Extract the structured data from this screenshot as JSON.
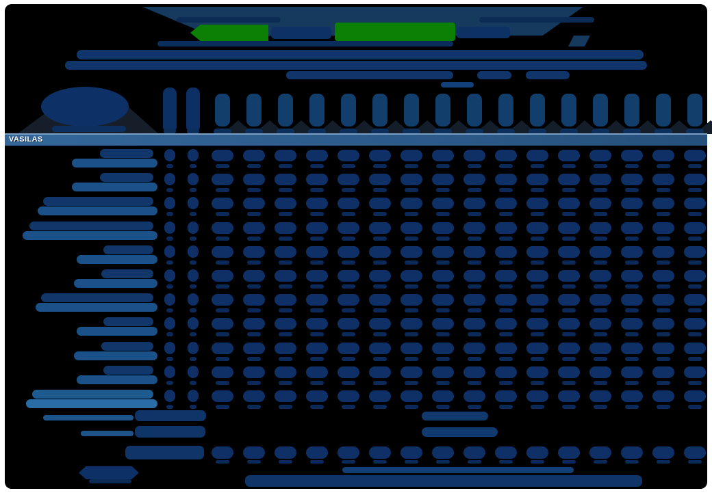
{
  "player_bar": {
    "name": "VASILAS"
  },
  "colors": {
    "background": "#000000",
    "frame": "#ffffff",
    "header_band": "#16395e",
    "highlight_green": "#0b8004",
    "navy_text": "#0e3067",
    "navy_text_dark": "#0c2a59",
    "link_blue": "#1a5188",
    "light_link_blue": "#2a6ca6",
    "bar_blue_left": "#34679a",
    "bar_blue_right": "#26507b",
    "bar_text": "#ffffff"
  },
  "nav": {
    "menu_item_count": 4,
    "highlighted_item_count": 2
  },
  "table": {
    "narrow_columns": [
      {
        "c": 248
      },
      {
        "c": 282
      }
    ],
    "wide_column_count": 16,
    "rows": [
      {
        "label_w": 125,
        "light": false
      },
      {
        "label_w": 125,
        "light": false
      },
      {
        "label_w": 175,
        "light": false
      },
      {
        "label_w": 197,
        "light": false
      },
      {
        "label_w": 118,
        "light": false
      },
      {
        "label_w": 122,
        "light": false
      },
      {
        "label_w": 178,
        "light": false
      },
      {
        "label_w": 118,
        "light": false
      },
      {
        "label_w": 122,
        "light": false
      },
      {
        "label_w": 118,
        "light": false
      },
      {
        "label_w": 192,
        "light": true
      }
    ],
    "has_totals_row": true
  }
}
